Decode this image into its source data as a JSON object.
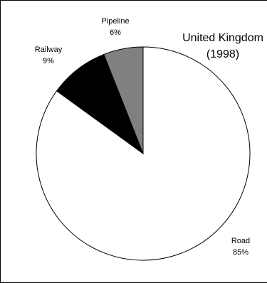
{
  "chart_data": {
    "type": "pie",
    "title": "United Kingdom",
    "subtitle": "(1998)",
    "slices": [
      {
        "label": "Road",
        "value": 85,
        "value_label": "85%",
        "color": "#ffffff"
      },
      {
        "label": "Railway",
        "value": 9,
        "value_label": "9%",
        "color": "#000000"
      },
      {
        "label": "Pipeline",
        "value": 6,
        "value_label": "6%",
        "color": "#808080"
      }
    ],
    "start_angle_deg": 0,
    "direction": "counterclockwise",
    "legend": "none"
  }
}
